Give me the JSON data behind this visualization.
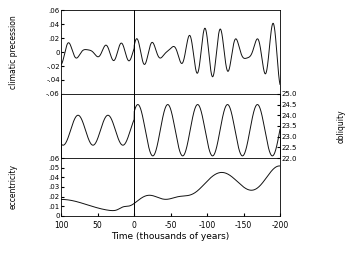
{
  "title": "",
  "xlabel": "Time (thousands of years)",
  "x_start": 100,
  "x_end": -200,
  "panel1": {
    "label": "climatic precession",
    "ylim": [
      -0.06,
      0.06
    ],
    "yticks": [
      -0.06,
      -0.04,
      -0.02,
      0,
      0.02,
      0.04,
      0.06
    ],
    "yticklabels": [
      "-.06",
      "-.04",
      "-.02",
      "0",
      ".02",
      ".04",
      ".06"
    ]
  },
  "panel2": {
    "label": "obliquity",
    "ylim": [
      22.0,
      25.0
    ],
    "yticks_right": [
      22.0,
      22.5,
      23.0,
      23.5,
      24.0,
      24.5,
      25.0
    ],
    "yticklabels_right": [
      "22.0",
      "22.5",
      "23.0",
      "23.5",
      "24.0",
      "24.5",
      "25.0"
    ]
  },
  "panel3": {
    "label": "eccentricity",
    "ylim": [
      0,
      0.06
    ],
    "yticks": [
      0,
      0.01,
      0.02,
      0.03,
      0.04,
      0.05,
      0.06
    ],
    "yticklabels": [
      "0",
      ".01",
      ".02",
      ".03",
      ".04",
      ".05",
      ".06"
    ]
  },
  "line_color": "#111111",
  "bg_color": "#ffffff",
  "xticks": [
    100,
    50,
    0,
    -50,
    -100,
    -150,
    -200
  ],
  "xticklabels": [
    "100",
    "50",
    "0",
    "-50",
    "-100",
    "-150",
    "-200"
  ]
}
